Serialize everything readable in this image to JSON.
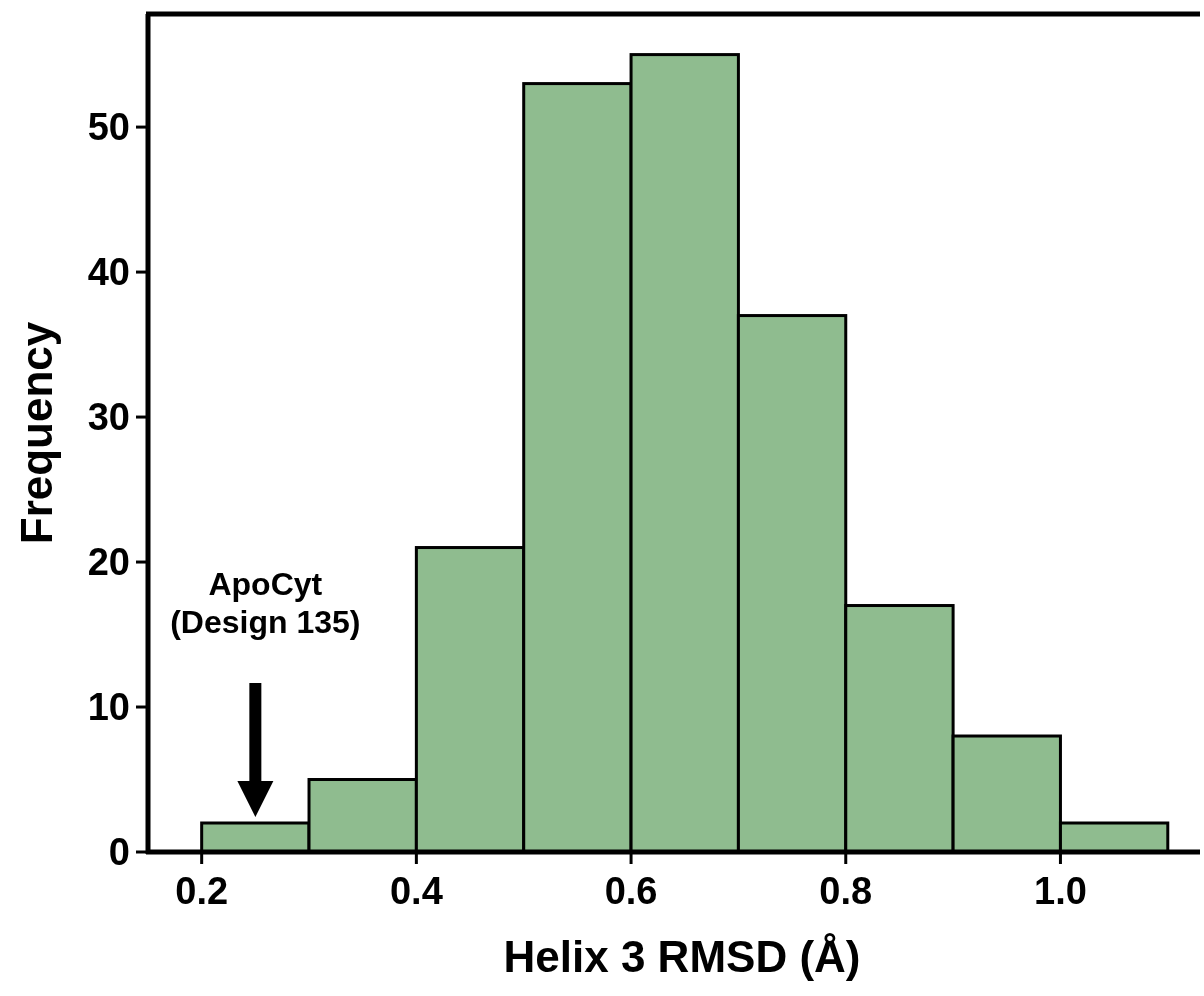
{
  "chart_data": {
    "type": "histogram",
    "xlabel": "Helix 3 RMSD (Å)",
    "ylabel": "Frequency",
    "bins": [
      0.2,
      0.3,
      0.4,
      0.5,
      0.6,
      0.7,
      0.8,
      0.9,
      1.0,
      1.1
    ],
    "values": [
      2,
      5,
      21,
      53,
      55,
      37,
      17,
      8,
      2
    ],
    "color": "#8fbc8f",
    "xlim": [
      0.15,
      1.13
    ],
    "ylim": [
      0,
      57.8
    ],
    "xticks": [
      0.2,
      0.4,
      0.6,
      0.8,
      {
        "value": 1.0,
        "label": "1.0"
      }
    ],
    "yticks": [
      0,
      10,
      20,
      30,
      40,
      50
    ],
    "grid": false,
    "annotations": [
      "ApoCyt\n(Design 135)"
    ]
  }
}
